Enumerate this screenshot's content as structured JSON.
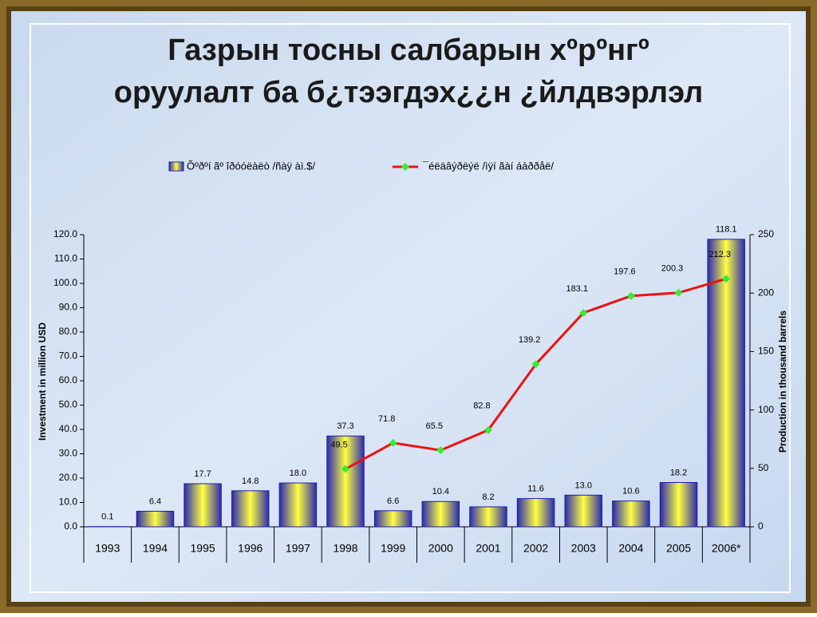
{
  "chart_data": {
    "type": "bar-line",
    "title": [
      "Газрын тосны салбарын хºрºнгº",
      "оруулалт ба б¿тээгдэх¿¿н ¿йлдвэрлэл"
    ],
    "ylabel": "Investment in million USD",
    "y2label": "Production in thousand barrels",
    "categories": [
      "1993",
      "1994",
      "1995",
      "1996",
      "1997",
      "1998",
      "1999",
      "2000",
      "2001",
      "2002",
      "2003",
      "2004",
      "2005",
      "2006*"
    ],
    "series": [
      {
        "name": "Õºðºí ãº îðóóëàëò /ñàÿ àì.$/",
        "type": "bar",
        "color": "#1f1fa8",
        "values": [
          0.1,
          6.4,
          17.7,
          14.8,
          18.0,
          37.3,
          6.6,
          10.4,
          8.2,
          11.6,
          13.0,
          10.6,
          18.2,
          118.1
        ],
        "value_labels": [
          "0.1",
          "6.4",
          "17.7",
          "14.8",
          "18.0",
          "37.3",
          "6.6",
          "10.4",
          "8.2",
          "11.6",
          "13.0",
          "10.6",
          "18.2",
          "118.1"
        ]
      },
      {
        "name": "¯éëäâýðëýë /ìÿí ãàí áàððåë/",
        "type": "line",
        "axis": "y2",
        "color": "#ee1111",
        "marker_color": "#33ee33",
        "values": [
          null,
          null,
          null,
          null,
          null,
          49.5,
          71.8,
          65.5,
          82.8,
          139.2,
          183.1,
          197.6,
          200.3,
          212.3
        ]
      }
    ],
    "ylim": [
      0,
      120
    ],
    "yticks": [
      {
        "value": 0,
        "label": "0.0"
      },
      {
        "value": 10,
        "label": "10.0"
      },
      {
        "value": 20,
        "label": "20.0"
      },
      {
        "value": 30,
        "label": "30.0"
      },
      {
        "value": 40,
        "label": "40.0"
      },
      {
        "value": 50,
        "label": "50.0"
      },
      {
        "value": 60,
        "label": "60.0"
      },
      {
        "value": 70,
        "label": "70.0"
      },
      {
        "value": 80,
        "label": "80.0"
      },
      {
        "value": 90,
        "label": "90.0"
      },
      {
        "value": 100,
        "label": "100.0"
      },
      {
        "value": 110,
        "label": "110.0"
      },
      {
        "value": 120,
        "label": "120.0"
      }
    ],
    "y2lim": [
      0,
      250
    ],
    "y2ticks": [
      0,
      50,
      100,
      150,
      200,
      250
    ],
    "legend": "top"
  }
}
